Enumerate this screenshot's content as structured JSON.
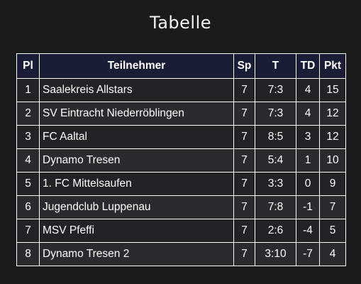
{
  "title": "Tabelle",
  "table": {
    "headers": {
      "pl": "Pl",
      "name": "Teilnehmer",
      "sp": "Sp",
      "t": "T",
      "td": "TD",
      "pkt": "Pkt"
    },
    "rows": [
      {
        "pl": "1",
        "name": "Saalekreis Allstars",
        "sp": "7",
        "t": "7:3",
        "td": "4",
        "pkt": "15"
      },
      {
        "pl": "2",
        "name": "SV Eintracht Niederröblingen",
        "sp": "7",
        "t": "7:3",
        "td": "4",
        "pkt": "12"
      },
      {
        "pl": "3",
        "name": "FC Aaltal",
        "sp": "7",
        "t": "8:5",
        "td": "3",
        "pkt": "12"
      },
      {
        "pl": "4",
        "name": "Dynamo Tresen",
        "sp": "7",
        "t": "5:4",
        "td": "1",
        "pkt": "10"
      },
      {
        "pl": "5",
        "name": "1. FC Mittelsaufen",
        "sp": "7",
        "t": "3:3",
        "td": "0",
        "pkt": "9"
      },
      {
        "pl": "6",
        "name": "Jugendclub Luppenau",
        "sp": "7",
        "t": "7:8",
        "td": "-1",
        "pkt": "7"
      },
      {
        "pl": "7",
        "name": "MSV Pfeffi",
        "sp": "7",
        "t": "2:6",
        "td": "-4",
        "pkt": "5"
      },
      {
        "pl": "8",
        "name": "Dynamo Tresen 2",
        "sp": "7",
        "t": "3:10",
        "td": "-7",
        "pkt": "4"
      }
    ]
  },
  "colors": {
    "background": "#1c1b1c",
    "header_background": "#1b1c36",
    "row_odd": "#232225",
    "row_even": "#2b2a2d",
    "border": "#ffffff",
    "text": "#ffffff"
  }
}
